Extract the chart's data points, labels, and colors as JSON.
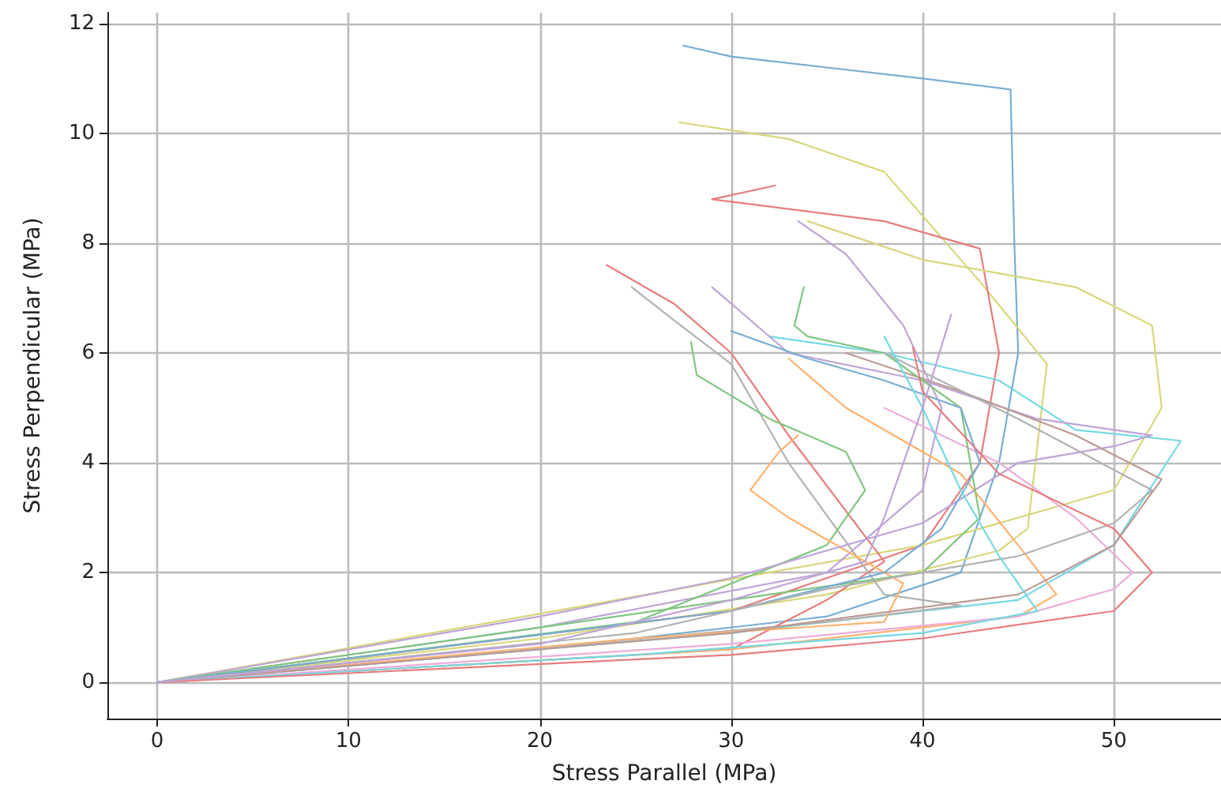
{
  "chart_data": {
    "type": "line",
    "xlabel": "Stress Parallel (MPa)",
    "ylabel": "Stress Perpendicular (MPa)",
    "xlim": [
      -2.6,
      55.6
    ],
    "ylim": [
      -0.66,
      12.2
    ],
    "xticks": [
      0,
      10,
      20,
      30,
      40,
      50
    ],
    "yticks": [
      0,
      2,
      4,
      6,
      8,
      10,
      12
    ],
    "grid": true,
    "marker": "none",
    "line_style": "solid",
    "series": [
      {
        "color": "#79add2",
        "x": [
          0,
          20,
          35,
          42,
          44,
          45,
          44.8,
          44.6,
          40,
          35,
          30,
          27.5
        ],
        "values": [
          0,
          0.6,
          1.2,
          2,
          4,
          6,
          8,
          10.8,
          11,
          11.2,
          11.4,
          11.6
        ]
      },
      {
        "color": "#d7d77a",
        "x": [
          0,
          20,
          35,
          44,
          45.5,
          46.5,
          43,
          38,
          33,
          27.3
        ],
        "values": [
          0,
          0.8,
          1.6,
          2.4,
          2.8,
          5.8,
          7.3,
          9.3,
          9.9,
          10.2
        ]
      },
      {
        "color": "#e67d7e",
        "x": [
          0,
          30,
          40,
          43,
          44,
          43,
          38,
          29,
          32.3
        ],
        "values": [
          0,
          1.3,
          2.5,
          4,
          6,
          7.9,
          8.4,
          8.8,
          9.05
        ]
      },
      {
        "color": "#d7d77a",
        "x": [
          0,
          40,
          50,
          52.5,
          52,
          48,
          40,
          34
        ],
        "values": [
          0,
          2.5,
          3.5,
          5,
          6.5,
          7.2,
          7.7,
          8.4
        ]
      },
      {
        "color": "#74d8e2",
        "x": [
          0,
          30,
          45,
          50,
          53.5,
          48,
          44,
          38,
          32
        ],
        "values": [
          0,
          0.9,
          1.5,
          2.5,
          4.4,
          4.6,
          5.5,
          6,
          6.3
        ]
      },
      {
        "color": "#bfa4d7",
        "x": [
          0,
          20,
          35,
          40,
          41,
          39,
          36,
          33.5
        ],
        "values": [
          0,
          1,
          2,
          3.5,
          5,
          6.5,
          7.8,
          8.4
        ]
      },
      {
        "color": "#e67d7e",
        "x": [
          0,
          30,
          35,
          38,
          33,
          30,
          27,
          23.5
        ],
        "values": [
          0,
          0.6,
          1.5,
          2.2,
          4.5,
          6,
          6.9,
          7.6
        ]
      },
      {
        "color": "#b2b2b2",
        "x": [
          0,
          35,
          42,
          38,
          33,
          30,
          27,
          24.8
        ],
        "values": [
          0,
          1.1,
          1.4,
          1.6,
          4,
          5.8,
          6.6,
          7.2
        ]
      },
      {
        "color": "#80c680",
        "x": [
          0,
          25,
          35,
          37,
          36,
          32,
          28.2,
          27.9
        ],
        "values": [
          0,
          1.1,
          2.5,
          3.5,
          4.2,
          4.8,
          5.6,
          6.2
        ]
      },
      {
        "color": "#ffb26e",
        "x": [
          0,
          25,
          38,
          39,
          33,
          31,
          32.5,
          33.5
        ],
        "values": [
          0,
          0.8,
          1.1,
          1.8,
          3,
          3.5,
          4.2,
          4.5
        ]
      },
      {
        "color": "#ffb26e",
        "x": [
          0,
          30,
          45,
          47,
          45,
          42,
          36,
          33
        ],
        "values": [
          0,
          0.6,
          1.2,
          1.6,
          2.5,
          3.8,
          5,
          5.9
        ]
      },
      {
        "color": "#bfa4d7",
        "x": [
          0,
          20,
          30,
          40,
          45,
          50,
          52,
          46,
          40,
          33,
          29
        ],
        "values": [
          0,
          1.2,
          1.9,
          2.9,
          4,
          4.3,
          4.5,
          4.8,
          5.5,
          6,
          7.2
        ]
      },
      {
        "color": "#eeadda",
        "x": [
          0,
          30,
          45,
          50,
          51,
          48,
          44,
          38
        ],
        "values": [
          0,
          0.7,
          1.2,
          1.7,
          2,
          3,
          4,
          5
        ]
      },
      {
        "color": "#ba9a93",
        "x": [
          0,
          30,
          45,
          50,
          52.5,
          48,
          42,
          36
        ],
        "values": [
          0,
          0.9,
          1.6,
          2.5,
          3.7,
          4.5,
          5.3,
          6
        ]
      },
      {
        "color": "#80c680",
        "x": [
          0,
          30,
          40,
          43,
          42,
          38,
          34,
          33.3,
          33.8
        ],
        "values": [
          0,
          1.5,
          2,
          3,
          5,
          6,
          6.3,
          6.5,
          7.2
        ]
      },
      {
        "color": "#79add2",
        "x": [
          0,
          30,
          38,
          41,
          43,
          42,
          38,
          34,
          30
        ],
        "values": [
          0,
          1.3,
          2,
          2.8,
          4,
          5,
          5.5,
          5.9,
          6.4
        ]
      },
      {
        "color": "#b2b2b2",
        "x": [
          0,
          25,
          35,
          45,
          50,
          52,
          45,
          38
        ],
        "values": [
          0,
          0.9,
          1.7,
          2.3,
          2.9,
          3.5,
          4.8,
          6
        ]
      },
      {
        "color": "#74d8e2",
        "x": [
          0,
          25,
          40,
          46,
          44,
          42,
          40,
          38
        ],
        "values": [
          0,
          0.5,
          0.9,
          1.3,
          2.3,
          3.5,
          5,
          6.3
        ]
      },
      {
        "color": "#e67d7e",
        "x": [
          0,
          30,
          40,
          50,
          52,
          50,
          44,
          40,
          39.5
        ],
        "values": [
          0,
          0.5,
          0.8,
          1.3,
          2,
          2.8,
          3.8,
          5.3,
          6.1
        ]
      },
      {
        "color": "#bfa4d7",
        "x": [
          0,
          20,
          30,
          37,
          38,
          40,
          41.5
        ],
        "values": [
          0,
          0.7,
          1.5,
          2.2,
          3,
          5,
          6.7
        ]
      }
    ]
  }
}
